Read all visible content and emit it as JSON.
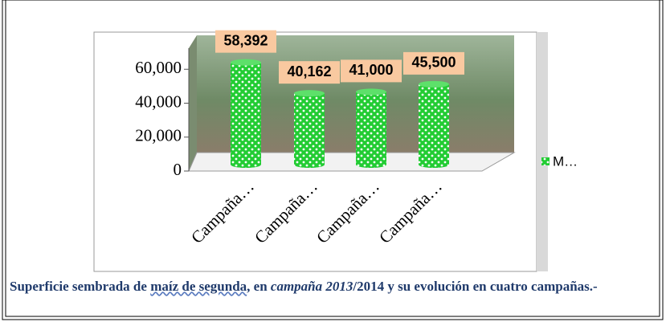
{
  "chart_data": {
    "type": "bar",
    "categories": [
      "Campaña…",
      "Campaña…",
      "Campaña…",
      "Campaña…"
    ],
    "series": [
      {
        "name": "M…",
        "color": "#22cc33",
        "values": [
          58392,
          40162,
          41000,
          45500
        ],
        "value_labels": [
          "58,392",
          "40,162",
          "41,000",
          "45,500"
        ]
      }
    ],
    "ylim": [
      0,
      80000
    ],
    "yticks": [
      0,
      {
        "value": 20000,
        "label": "20,000"
      },
      {
        "value": 40000,
        "label": "40,000"
      },
      {
        "value": 60000,
        "label": "60,000"
      }
    ],
    "legend": "right"
  },
  "caption": [
    {
      "text": "Superficie sembrada de ",
      "style": "plain"
    },
    {
      "text": "maíz de segunda",
      "style": "underline"
    },
    {
      "text": ", en ",
      "style": "plain"
    },
    {
      "text": "campaña 2013",
      "style": "italic"
    },
    {
      "text": "/2014 y su evolución en cuatro campañas.-",
      "style": "plain"
    }
  ]
}
